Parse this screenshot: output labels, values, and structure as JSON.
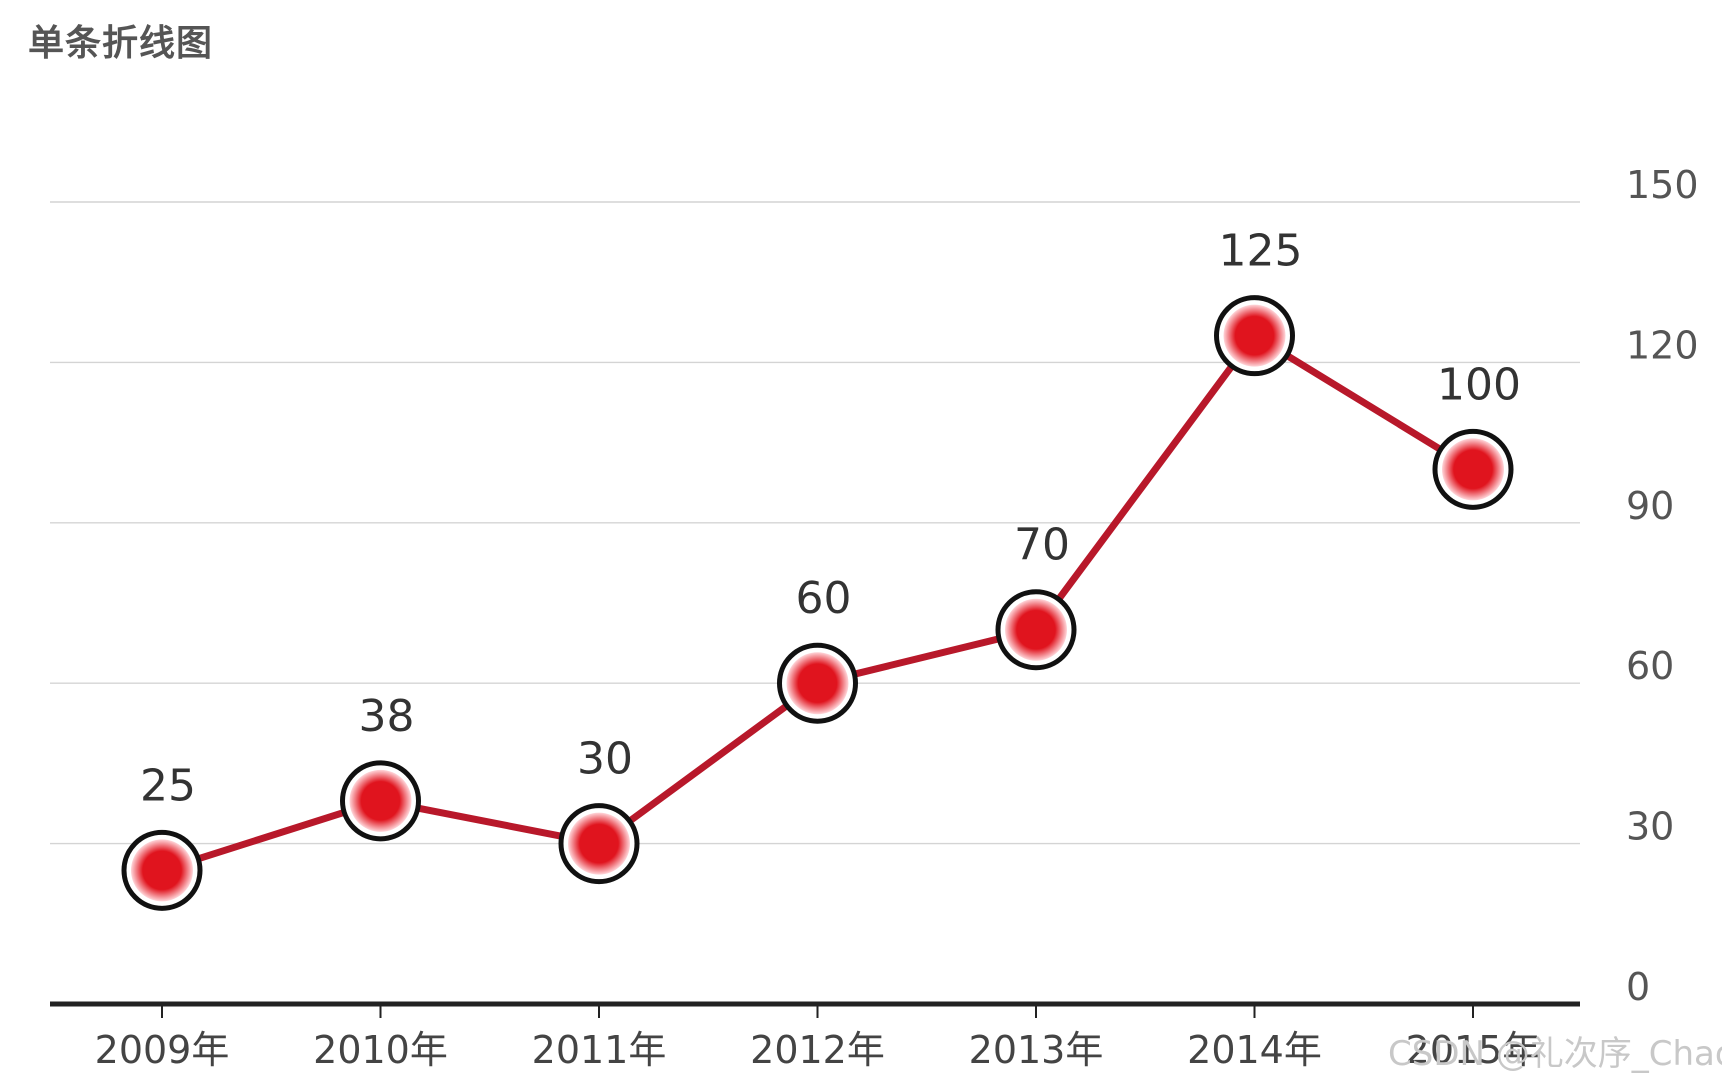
{
  "title": "单条折线图",
  "watermark": "CSDN @礼次序_Chaos",
  "colors": {
    "line": "#b8182a",
    "marker_fill": "#e0141e",
    "marker_stroke": "#111111"
  },
  "chart_data": {
    "type": "line",
    "title": "单条折线图",
    "categories": [
      "2009年",
      "2010年",
      "2011年",
      "2012年",
      "2013年",
      "2014年",
      "2015年"
    ],
    "series": [
      {
        "values": [
          25,
          38,
          30,
          60,
          70,
          125,
          100
        ]
      }
    ],
    "data_labels": [
      "25",
      "38",
      "30",
      "60",
      "70",
      "125",
      "100"
    ],
    "ylim": [
      0,
      150
    ],
    "yticks": [
      0,
      30,
      60,
      90,
      120,
      150
    ],
    "y_axis_position": "right",
    "grid": true,
    "legend": "none"
  }
}
